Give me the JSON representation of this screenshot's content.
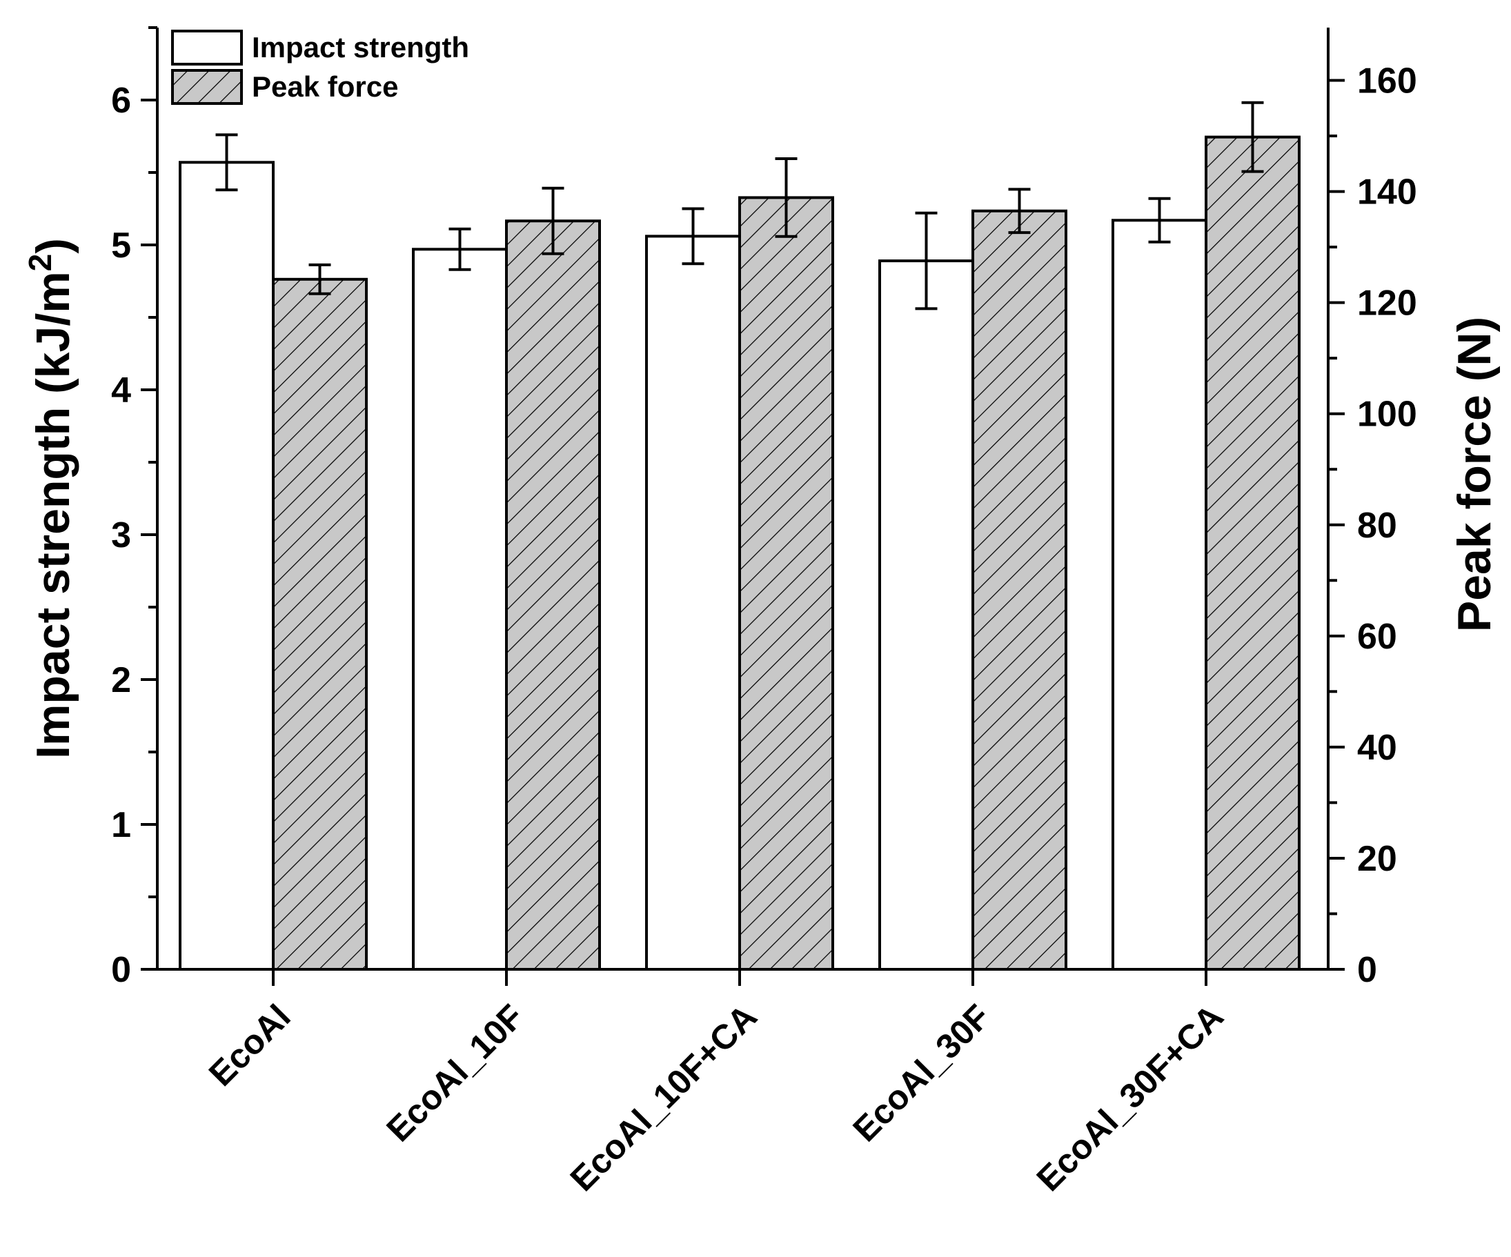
{
  "chart_data": {
    "type": "bar",
    "categories": [
      "EcoAl",
      "EcoAl_10F",
      "EcoAl_10F+CA",
      "EcoAl_30F",
      "EcoAl_30F+CA"
    ],
    "series": [
      {
        "name": "Impact strength",
        "axis": "left",
        "values": [
          5.57,
          4.97,
          5.06,
          4.89,
          5.17
        ],
        "errors": [
          0.19,
          0.14,
          0.19,
          0.33,
          0.15
        ],
        "fill": "#ffffff",
        "pattern": "none"
      },
      {
        "name": "Peak force",
        "axis": "right",
        "values": [
          124.2,
          134.7,
          138.9,
          136.5,
          149.8
        ],
        "errors": [
          2.6,
          5.9,
          7.0,
          3.9,
          6.2
        ],
        "fill": "#c8c8c8",
        "pattern": "diagonal-hatch"
      }
    ],
    "ylabel_left": "Impact strength (kJ/m",
    "ylabel_left_sup": "2",
    "ylabel_left_close": ")",
    "ylabel_right": "Peak force (N)",
    "ylim_left": [
      0,
      6.5
    ],
    "ylim_right": [
      0,
      169.5
    ],
    "yticks_left": [
      0,
      1,
      2,
      3,
      4,
      5,
      6
    ],
    "yticks_right": [
      0,
      20,
      40,
      60,
      80,
      100,
      120,
      140,
      160
    ],
    "xlabel": "",
    "legend_position": "top-left",
    "grid": false
  }
}
